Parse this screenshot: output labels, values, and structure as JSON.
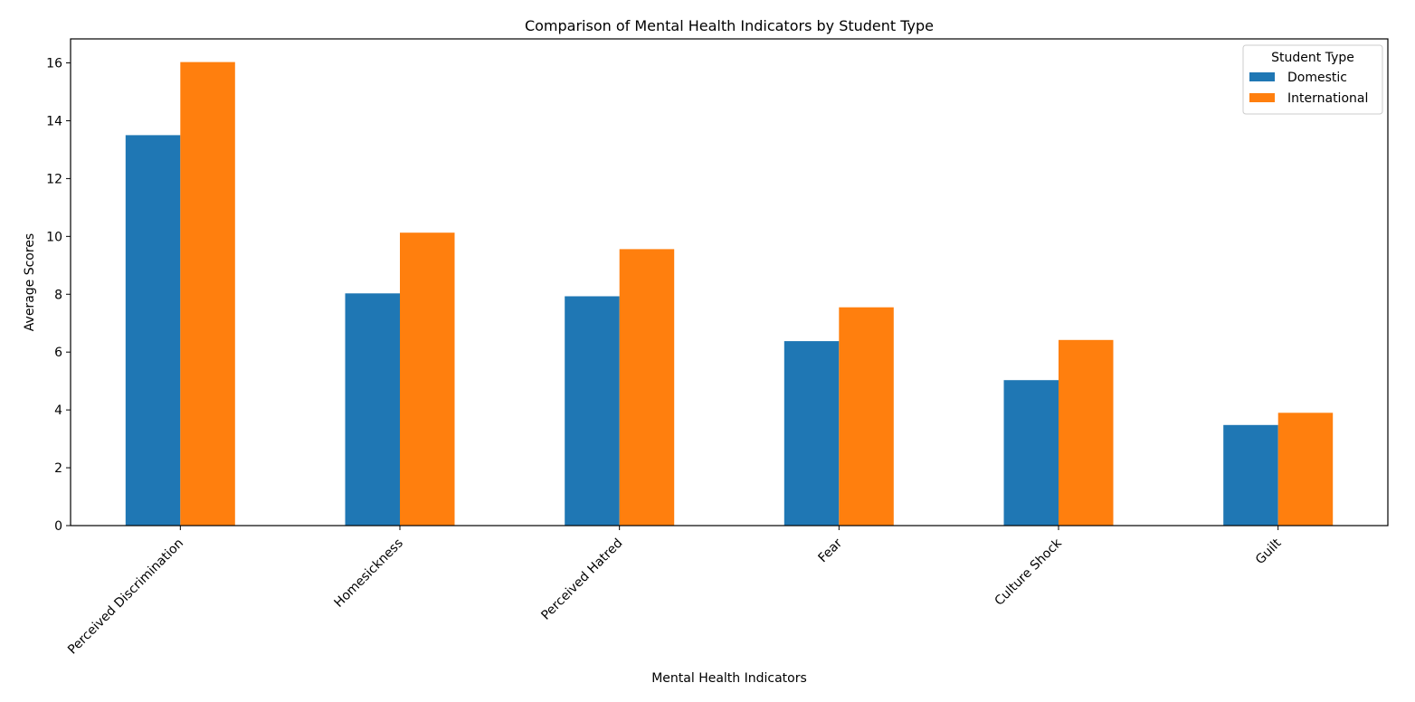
{
  "chart_data": {
    "type": "bar",
    "title": "Comparison of Mental Health Indicators by Student Type",
    "xlabel": "Mental Health Indicators",
    "ylabel": "Average Scores",
    "categories": [
      "Perceived Discrimination",
      "Homesickness",
      "Perceived Hatred",
      "Fear",
      "Culture Shock",
      "Guilt"
    ],
    "series": [
      {
        "name": "Domestic",
        "color": "#1f77b4",
        "values": [
          13.5,
          8.03,
          7.93,
          6.38,
          5.03,
          3.48
        ]
      },
      {
        "name": "International",
        "color": "#ff7f0e",
        "values": [
          16.03,
          10.13,
          9.56,
          7.55,
          6.42,
          3.9
        ]
      }
    ],
    "ylim": [
      0,
      16.83
    ],
    "yticks": [
      "0",
      "2",
      "4",
      "6",
      "8",
      "10",
      "12",
      "14",
      "16"
    ],
    "legend": {
      "title": "Student Type",
      "position": "top-right"
    },
    "grid": false
  }
}
